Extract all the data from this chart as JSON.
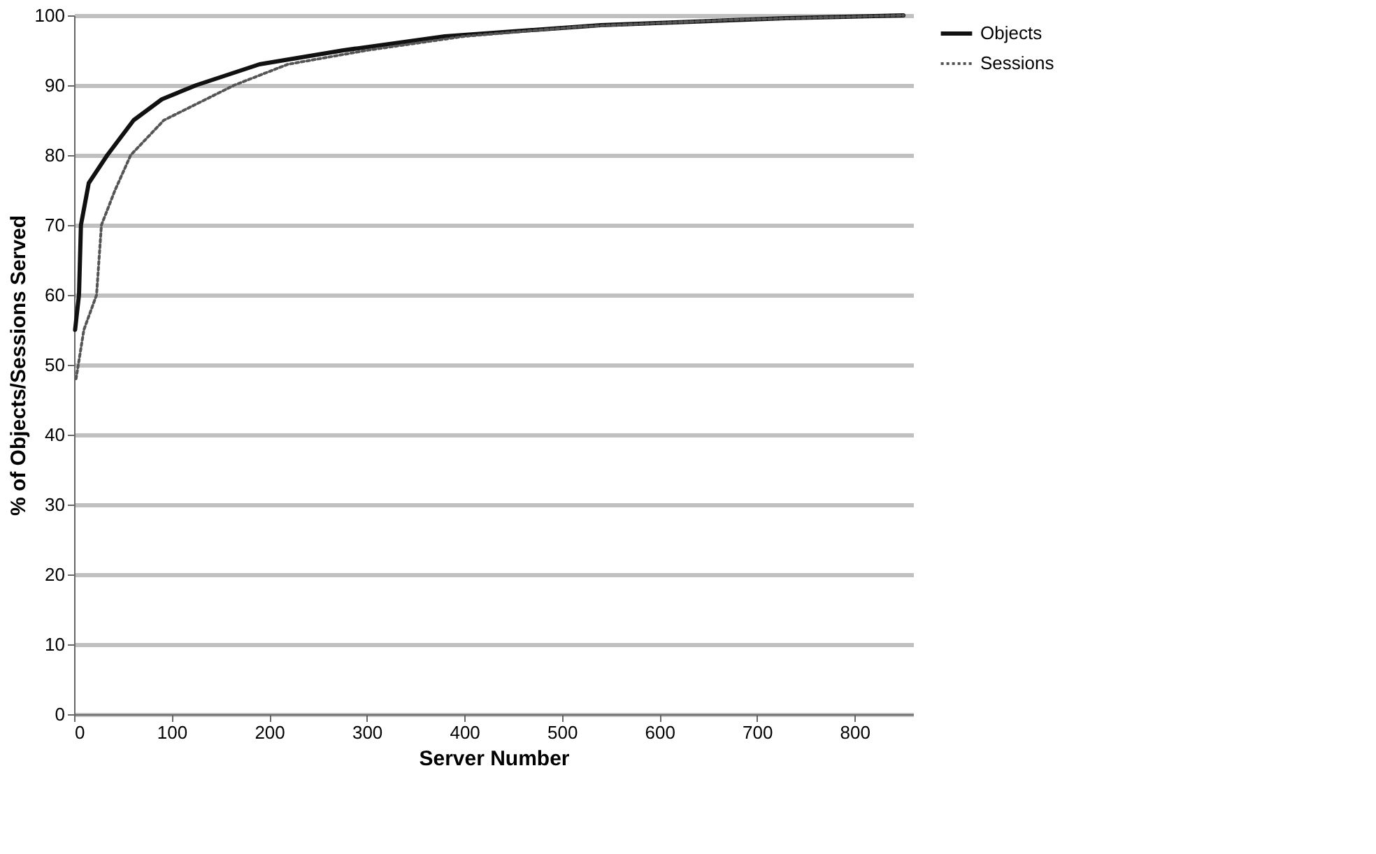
{
  "chart_data": {
    "type": "line",
    "xlabel": "Server Number",
    "ylabel": "% of Objects/Sessions Served",
    "xlim": [
      0,
      860
    ],
    "xticks": [
      0,
      100,
      200,
      300,
      400,
      500,
      600,
      700,
      800
    ],
    "ylim": [
      0,
      100
    ],
    "yticks": [
      0,
      10,
      20,
      30,
      40,
      50,
      60,
      70,
      80,
      90,
      100
    ],
    "grid": "y",
    "legend": "right",
    "marker": "none",
    "series": [
      {
        "name": "Objects",
        "color": "#111111",
        "line_style": "solid",
        "x": [
          1,
          5,
          7,
          15,
          34,
          61,
          90,
          125,
          190,
          276,
          380,
          540,
          730,
          850
        ],
        "values": [
          55,
          60,
          70,
          76,
          80,
          85,
          88,
          90,
          93,
          95,
          97,
          98.6,
          99.6,
          100
        ]
      },
      {
        "name": "Sessions",
        "color": "#555555",
        "line_style": "dotted",
        "x": [
          2,
          10,
          23,
          28,
          42,
          58,
          92,
          164,
          219,
          300,
          400,
          520,
          681,
          850
        ],
        "values": [
          48,
          55,
          60,
          70,
          75,
          80,
          85,
          90,
          93,
          95,
          97,
          98.4,
          99.4,
          100
        ]
      }
    ]
  }
}
